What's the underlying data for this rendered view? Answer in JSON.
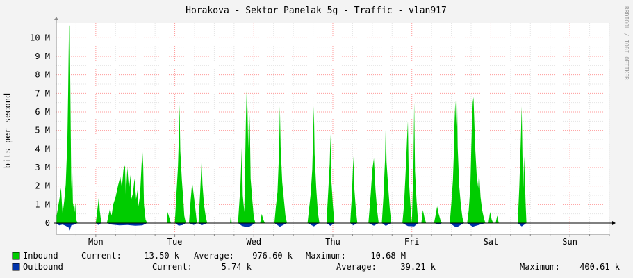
{
  "chart_data": {
    "type": "area",
    "title": "Horakova - Sektor Panelak 5g - Traffic - vlan917",
    "ylabel": "bits per second",
    "watermark": "RRDTOOL / TOBI OETIKER",
    "ylim": [
      -0.6,
      10.8
    ],
    "y_ticks": [
      {
        "value": 0,
        "label": "0"
      },
      {
        "value": 1,
        "label": "1 M"
      },
      {
        "value": 2,
        "label": "2 M"
      },
      {
        "value": 3,
        "label": "3 M"
      },
      {
        "value": 4,
        "label": "4 M"
      },
      {
        "value": 5,
        "label": "5 M"
      },
      {
        "value": 6,
        "label": "6 M"
      },
      {
        "value": 7,
        "label": "7 M"
      },
      {
        "value": 8,
        "label": "8 M"
      },
      {
        "value": 9,
        "label": "9 M"
      },
      {
        "value": 10,
        "label": "10 M"
      }
    ],
    "x_unit": "days",
    "xlim": [
      0,
      7
    ],
    "x_ticks": [
      {
        "value": 0.5,
        "label": "Mon"
      },
      {
        "value": 1.5,
        "label": "Tue"
      },
      {
        "value": 2.5,
        "label": "Wed"
      },
      {
        "value": 3.5,
        "label": "Thu"
      },
      {
        "value": 4.5,
        "label": "Fri"
      },
      {
        "value": 5.5,
        "label": "Sat"
      },
      {
        "value": 6.5,
        "label": "Sun"
      }
    ],
    "series": [
      {
        "name": "Inbound",
        "color": "#00cc00",
        "current": "13.50 k",
        "average": "976.60 k",
        "maximum": "10.68 M",
        "points": [
          [
            0.0,
            0.3
          ],
          [
            0.02,
            0.8
          ],
          [
            0.04,
            1.3
          ],
          [
            0.06,
            1.9
          ],
          [
            0.07,
            1.1
          ],
          [
            0.08,
            0.5
          ],
          [
            0.1,
            1.2
          ],
          [
            0.12,
            2.1
          ],
          [
            0.14,
            4.4
          ],
          [
            0.15,
            7.2
          ],
          [
            0.16,
            10.5
          ],
          [
            0.17,
            10.68
          ],
          [
            0.18,
            6.0
          ],
          [
            0.19,
            1.8
          ],
          [
            0.2,
            3.3
          ],
          [
            0.21,
            1.1
          ],
          [
            0.23,
            0.6
          ],
          [
            0.24,
            1.1
          ],
          [
            0.25,
            0.2
          ],
          [
            0.27,
            0.0
          ],
          [
            0.5,
            0.0
          ],
          [
            0.53,
            1.1
          ],
          [
            0.54,
            1.5
          ],
          [
            0.55,
            0.7
          ],
          [
            0.57,
            0.0
          ],
          [
            0.64,
            0.0
          ],
          [
            0.66,
            0.4
          ],
          [
            0.68,
            0.8
          ],
          [
            0.7,
            0.4
          ],
          [
            0.72,
            1.0
          ],
          [
            0.75,
            1.4
          ],
          [
            0.78,
            2.0
          ],
          [
            0.81,
            2.5
          ],
          [
            0.83,
            1.9
          ],
          [
            0.85,
            2.9
          ],
          [
            0.87,
            3.1
          ],
          [
            0.88,
            1.4
          ],
          [
            0.9,
            3.0
          ],
          [
            0.92,
            1.8
          ],
          [
            0.94,
            2.6
          ],
          [
            0.95,
            1.3
          ],
          [
            0.97,
            1.6
          ],
          [
            0.99,
            2.4
          ],
          [
            1.01,
            1.3
          ],
          [
            1.03,
            1.8
          ],
          [
            1.04,
            0.9
          ],
          [
            1.06,
            1.5
          ],
          [
            1.08,
            3.2
          ],
          [
            1.09,
            3.9
          ],
          [
            1.1,
            3.1
          ],
          [
            1.11,
            1.0
          ],
          [
            1.13,
            0.2
          ],
          [
            1.15,
            0.0
          ],
          [
            1.4,
            0.0
          ],
          [
            1.41,
            0.6
          ],
          [
            1.43,
            0.3
          ],
          [
            1.45,
            0.0
          ],
          [
            1.5,
            0.0
          ],
          [
            1.52,
            1.5
          ],
          [
            1.54,
            3.0
          ],
          [
            1.55,
            4.5
          ],
          [
            1.56,
            6.4
          ],
          [
            1.57,
            3.9
          ],
          [
            1.59,
            2.3
          ],
          [
            1.61,
            1.1
          ],
          [
            1.62,
            0.4
          ],
          [
            1.64,
            0.0
          ],
          [
            1.68,
            0.0
          ],
          [
            1.7,
            1.2
          ],
          [
            1.72,
            2.2
          ],
          [
            1.74,
            1.5
          ],
          [
            1.76,
            0.8
          ],
          [
            1.78,
            0.0
          ],
          [
            1.8,
            0.0
          ],
          [
            1.82,
            1.6
          ],
          [
            1.84,
            3.4
          ],
          [
            1.85,
            2.1
          ],
          [
            1.87,
            1.0
          ],
          [
            1.89,
            0.4
          ],
          [
            1.91,
            0.0
          ],
          [
            2.2,
            0.0
          ],
          [
            2.21,
            0.5
          ],
          [
            2.22,
            0.0
          ],
          [
            2.3,
            0.0
          ],
          [
            2.33,
            2.0
          ],
          [
            2.35,
            4.3
          ],
          [
            2.36,
            1.5
          ],
          [
            2.38,
            0.6
          ],
          [
            2.4,
            5.5
          ],
          [
            2.41,
            7.3
          ],
          [
            2.42,
            6.1
          ],
          [
            2.43,
            4.0
          ],
          [
            2.44,
            6.4
          ],
          [
            2.45,
            5.2
          ],
          [
            2.46,
            2.4
          ],
          [
            2.48,
            1.3
          ],
          [
            2.5,
            0.3
          ],
          [
            2.52,
            0.0
          ],
          [
            2.58,
            0.0
          ],
          [
            2.6,
            0.5
          ],
          [
            2.62,
            0.2
          ],
          [
            2.64,
            0.0
          ],
          [
            2.76,
            0.0
          ],
          [
            2.78,
            0.9
          ],
          [
            2.8,
            1.7
          ],
          [
            2.82,
            3.9
          ],
          [
            2.83,
            6.3
          ],
          [
            2.84,
            4.1
          ],
          [
            2.86,
            2.2
          ],
          [
            2.88,
            1.3
          ],
          [
            2.9,
            0.4
          ],
          [
            2.92,
            0.0
          ],
          [
            3.18,
            0.0
          ],
          [
            3.2,
            0.8
          ],
          [
            3.22,
            1.6
          ],
          [
            3.24,
            2.9
          ],
          [
            3.25,
            4.6
          ],
          [
            3.26,
            6.3
          ],
          [
            3.27,
            3.7
          ],
          [
            3.29,
            1.9
          ],
          [
            3.31,
            0.6
          ],
          [
            3.33,
            0.0
          ],
          [
            3.42,
            0.0
          ],
          [
            3.44,
            1.6
          ],
          [
            3.46,
            3.2
          ],
          [
            3.47,
            4.8
          ],
          [
            3.48,
            2.4
          ],
          [
            3.5,
            1.0
          ],
          [
            3.52,
            0.0
          ],
          [
            3.72,
            0.0
          ],
          [
            3.74,
            1.4
          ],
          [
            3.76,
            3.6
          ],
          [
            3.77,
            2.0
          ],
          [
            3.79,
            0.8
          ],
          [
            3.81,
            0.0
          ],
          [
            3.95,
            0.0
          ],
          [
            3.96,
            0.5
          ],
          [
            3.98,
            1.6
          ],
          [
            4.0,
            2.9
          ],
          [
            4.02,
            3.5
          ],
          [
            4.04,
            1.8
          ],
          [
            4.06,
            0.7
          ],
          [
            4.08,
            0.0
          ],
          [
            4.12,
            0.0
          ],
          [
            4.14,
            1.4
          ],
          [
            4.16,
            3.4
          ],
          [
            4.17,
            5.4
          ],
          [
            4.18,
            3.3
          ],
          [
            4.2,
            2.0
          ],
          [
            4.22,
            0.8
          ],
          [
            4.24,
            0.0
          ],
          [
            4.38,
            0.0
          ],
          [
            4.4,
            0.9
          ],
          [
            4.42,
            2.6
          ],
          [
            4.44,
            4.6
          ],
          [
            4.45,
            5.5
          ],
          [
            4.46,
            2.5
          ],
          [
            4.48,
            1.1
          ],
          [
            4.5,
            0.0
          ],
          [
            4.52,
            3.1
          ],
          [
            4.53,
            6.5
          ],
          [
            4.54,
            2.8
          ],
          [
            4.56,
            1.2
          ],
          [
            4.58,
            0.0
          ],
          [
            4.62,
            0.0
          ],
          [
            4.64,
            0.7
          ],
          [
            4.66,
            0.3
          ],
          [
            4.68,
            0.0
          ],
          [
            4.78,
            0.0
          ],
          [
            4.8,
            0.4
          ],
          [
            4.82,
            0.9
          ],
          [
            4.84,
            0.5
          ],
          [
            4.86,
            0.2
          ],
          [
            4.88,
            0.0
          ],
          [
            4.98,
            0.0
          ],
          [
            5.0,
            1.1
          ],
          [
            5.02,
            2.3
          ],
          [
            5.03,
            3.6
          ],
          [
            5.04,
            5.4
          ],
          [
            5.05,
            6.6
          ],
          [
            5.06,
            5.2
          ],
          [
            5.07,
            7.8
          ],
          [
            5.08,
            4.1
          ],
          [
            5.1,
            2.0
          ],
          [
            5.12,
            1.0
          ],
          [
            5.14,
            0.3
          ],
          [
            5.16,
            0.0
          ],
          [
            5.2,
            0.0
          ],
          [
            5.22,
            0.7
          ],
          [
            5.24,
            2.0
          ],
          [
            5.26,
            5.3
          ],
          [
            5.27,
            6.5
          ],
          [
            5.28,
            6.8
          ],
          [
            5.29,
            5.6
          ],
          [
            5.3,
            4.2
          ],
          [
            5.32,
            2.6
          ],
          [
            5.34,
            1.9
          ],
          [
            5.35,
            2.8
          ],
          [
            5.37,
            1.4
          ],
          [
            5.39,
            0.7
          ],
          [
            5.41,
            0.3
          ],
          [
            5.43,
            0.0
          ],
          [
            5.47,
            0.0
          ],
          [
            5.49,
            0.6
          ],
          [
            5.51,
            0.2
          ],
          [
            5.53,
            0.0
          ],
          [
            5.56,
            0.0
          ],
          [
            5.58,
            0.4
          ],
          [
            5.6,
            0.0
          ],
          [
            5.84,
            0.0
          ],
          [
            5.86,
            2.0
          ],
          [
            5.88,
            4.6
          ],
          [
            5.89,
            6.3
          ],
          [
            5.9,
            3.6
          ],
          [
            5.91,
            1.9
          ],
          [
            5.92,
            3.6
          ],
          [
            5.93,
            2.4
          ],
          [
            5.94,
            1.0
          ],
          [
            5.95,
            0.0
          ],
          [
            6.0,
            0.0
          ]
        ]
      },
      {
        "name": "Outbound",
        "color": "#0033aa",
        "current": "5.74 k",
        "average": "39.21 k",
        "maximum": "400.61 k",
        "points": [
          [
            0.0,
            -0.05
          ],
          [
            0.04,
            -0.12
          ],
          [
            0.08,
            -0.08
          ],
          [
            0.12,
            -0.15
          ],
          [
            0.16,
            -0.25
          ],
          [
            0.17,
            -0.4
          ],
          [
            0.19,
            -0.12
          ],
          [
            0.23,
            -0.08
          ],
          [
            0.27,
            0.0
          ],
          [
            0.5,
            0.0
          ],
          [
            0.53,
            -0.1
          ],
          [
            0.57,
            0.0
          ],
          [
            0.64,
            0.0
          ],
          [
            0.7,
            -0.08
          ],
          [
            0.8,
            -0.12
          ],
          [
            0.9,
            -0.1
          ],
          [
            1.0,
            -0.14
          ],
          [
            1.09,
            -0.12
          ],
          [
            1.15,
            0.0
          ],
          [
            1.5,
            0.0
          ],
          [
            1.55,
            -0.14
          ],
          [
            1.6,
            -0.1
          ],
          [
            1.64,
            0.0
          ],
          [
            1.68,
            0.0
          ],
          [
            1.74,
            -0.1
          ],
          [
            1.78,
            0.0
          ],
          [
            1.8,
            0.0
          ],
          [
            1.84,
            -0.12
          ],
          [
            1.91,
            0.0
          ],
          [
            2.3,
            0.0
          ],
          [
            2.35,
            -0.15
          ],
          [
            2.41,
            -0.22
          ],
          [
            2.45,
            -0.18
          ],
          [
            2.52,
            0.0
          ],
          [
            2.76,
            0.0
          ],
          [
            2.83,
            -0.2
          ],
          [
            2.92,
            0.0
          ],
          [
            3.18,
            0.0
          ],
          [
            3.26,
            -0.18
          ],
          [
            3.33,
            0.0
          ],
          [
            3.42,
            0.0
          ],
          [
            3.47,
            -0.15
          ],
          [
            3.52,
            0.0
          ],
          [
            3.72,
            0.0
          ],
          [
            3.76,
            -0.12
          ],
          [
            3.81,
            0.0
          ],
          [
            3.95,
            0.0
          ],
          [
            4.02,
            -0.14
          ],
          [
            4.08,
            0.0
          ],
          [
            4.12,
            0.0
          ],
          [
            4.17,
            -0.15
          ],
          [
            4.24,
            0.0
          ],
          [
            4.38,
            0.0
          ],
          [
            4.45,
            -0.16
          ],
          [
            4.53,
            -0.18
          ],
          [
            4.58,
            0.0
          ],
          [
            4.78,
            0.0
          ],
          [
            4.84,
            -0.08
          ],
          [
            4.88,
            0.0
          ],
          [
            4.98,
            0.0
          ],
          [
            5.04,
            -0.18
          ],
          [
            5.07,
            -0.22
          ],
          [
            5.16,
            0.0
          ],
          [
            5.2,
            0.0
          ],
          [
            5.27,
            -0.2
          ],
          [
            5.3,
            -0.16
          ],
          [
            5.43,
            0.0
          ],
          [
            5.84,
            0.0
          ],
          [
            5.89,
            -0.18
          ],
          [
            5.95,
            0.0
          ],
          [
            6.0,
            0.0
          ]
        ]
      }
    ],
    "legend_labels": {
      "current": "Current:",
      "average": "Average:",
      "maximum": "Maximum:"
    },
    "grid": true,
    "legend": "bottom-left"
  }
}
